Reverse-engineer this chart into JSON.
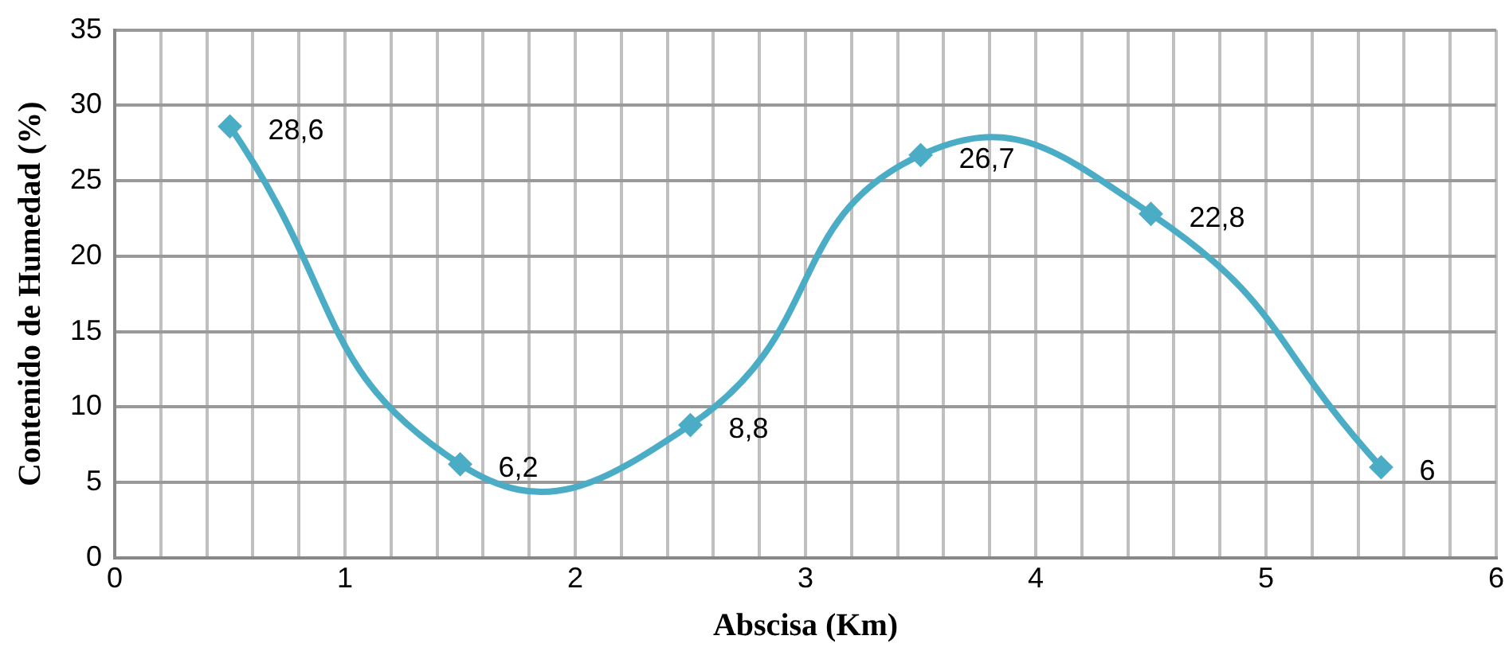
{
  "chart_data": {
    "type": "line",
    "xlabel": "Abscisa (Km)",
    "ylabel": "Contenido de Humedad (%)",
    "x": [
      0.5,
      1.5,
      2.5,
      3.5,
      4.5,
      5.5
    ],
    "series": [
      {
        "color": "#4bacc6",
        "values": [
          28.6,
          6.2,
          8.8,
          26.7,
          22.8,
          6
        ],
        "value_labels": [
          "28,6",
          "6,2",
          "8,8",
          "26,7",
          "22,8",
          "6"
        ]
      }
    ],
    "xlim": [
      0,
      6
    ],
    "xticks": [
      0,
      {
        "value": 0.2,
        "label": null
      },
      {
        "value": 0.4,
        "label": null
      },
      {
        "value": 0.6,
        "label": null
      },
      {
        "value": 0.8,
        "label": null
      },
      1,
      {
        "value": 1.2,
        "label": null
      },
      {
        "value": 1.4,
        "label": null
      },
      {
        "value": 1.6,
        "label": null
      },
      {
        "value": 1.8,
        "label": null
      },
      2,
      {
        "value": 2.2,
        "label": null
      },
      {
        "value": 2.4,
        "label": null
      },
      {
        "value": 2.6,
        "label": null
      },
      {
        "value": 2.8,
        "label": null
      },
      3,
      {
        "value": 3.2,
        "label": null
      },
      {
        "value": 3.4,
        "label": null
      },
      {
        "value": 3.6,
        "label": null
      },
      {
        "value": 3.8,
        "label": null
      },
      4,
      {
        "value": 4.2,
        "label": null
      },
      {
        "value": 4.4,
        "label": null
      },
      {
        "value": 4.6,
        "label": null
      },
      {
        "value": 4.8,
        "label": null
      },
      5,
      {
        "value": 5.2,
        "label": null
      },
      {
        "value": 5.4,
        "label": null
      },
      {
        "value": 5.6,
        "label": null
      },
      {
        "value": 5.8,
        "label": null
      },
      6
    ],
    "ylim": [
      0,
      35
    ],
    "yticks": [
      0,
      5,
      10,
      15,
      20,
      25,
      30,
      35
    ],
    "grid": true,
    "legend": false,
    "marker": "diamond",
    "line_style": "solid"
  }
}
